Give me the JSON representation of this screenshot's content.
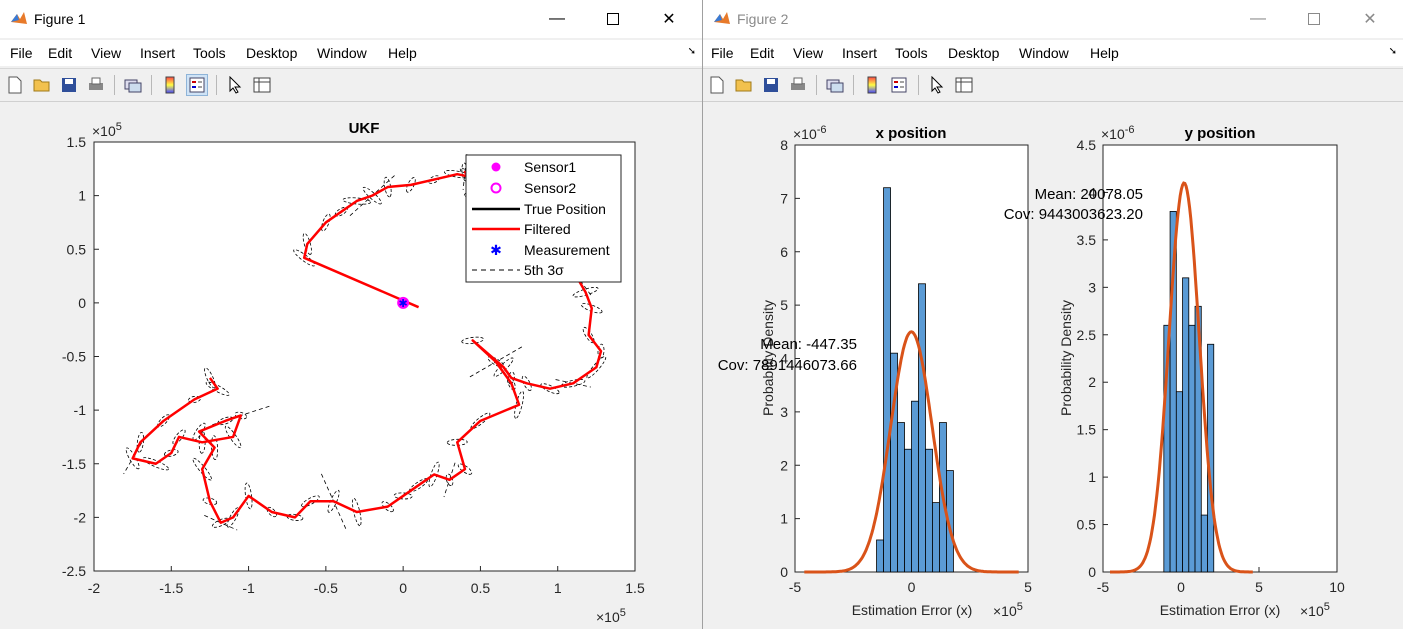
{
  "figure1": {
    "title": "Figure 1",
    "menu": [
      "File",
      "Edit",
      "View",
      "Insert",
      "Tools",
      "Desktop",
      "Window",
      "Help"
    ],
    "toolbar_icons": [
      "new-figure-icon",
      "open-file-icon",
      "save-icon",
      "print-icon",
      "link-plot-icon",
      "colorbar-icon",
      "legend-icon",
      "pointer-icon",
      "property-inspector-icon"
    ],
    "plot": {
      "title": "UKF",
      "x_exponent": "×10",
      "x_exponent_power": "5",
      "y_exponent": "×10",
      "y_exponent_power": "5",
      "legend": [
        {
          "label": "Sensor1",
          "marker": "filled-circle",
          "color": "#ff00ff"
        },
        {
          "label": "Sensor2",
          "marker": "open-circle",
          "color": "#ff00ff"
        },
        {
          "label": "True Position",
          "marker": "line",
          "color": "#000000"
        },
        {
          "label": "Filtered",
          "marker": "line",
          "color": "#ff0000"
        },
        {
          "label": "Measurement",
          "marker": "asterisk",
          "color": "#0000ff"
        },
        {
          "label": "5th 3σ",
          "marker": "dashed-line",
          "color": "#000000"
        }
      ]
    }
  },
  "figure2": {
    "title": "Figure 2",
    "menu": [
      "File",
      "Edit",
      "View",
      "Insert",
      "Tools",
      "Desktop",
      "Window",
      "Help"
    ],
    "toolbar_icons": [
      "new-figure-icon",
      "open-file-icon",
      "save-icon",
      "print-icon",
      "link-plot-icon",
      "colorbar-icon",
      "legend-icon",
      "pointer-icon",
      "property-inspector-icon"
    ],
    "x_panel": {
      "title": "x position",
      "xlabel": "Estimation Error (x)",
      "ylabel": "Probability Density",
      "y_exponent": "×10",
      "y_exponent_power": "-6",
      "x_exponent": "×10",
      "x_exponent_power": "5",
      "mean_text": "Mean: -447.35",
      "cov_text": "Cov: 7891446073.66"
    },
    "y_panel": {
      "title": "y position",
      "xlabel": "Estimation Error (x)",
      "ylabel": "Probability Density",
      "y_exponent": "×10",
      "y_exponent_power": "-6",
      "x_exponent": "×10",
      "x_exponent_power": "5",
      "mean_text": "Mean: 20078.05",
      "cov_text": "Cov: 9443003623.20"
    }
  },
  "colors": {
    "hist_fill": "#5b9bd5",
    "fit_line": "#d95319",
    "filtered": "#ff0000",
    "sensor": "#ff00ff",
    "measurement": "#0000ff"
  },
  "chart_data": [
    {
      "type": "line",
      "title": "UKF",
      "xlim": [
        -2.0,
        1.5
      ],
      "ylim": [
        -2.5,
        1.5
      ],
      "x_ticks": [
        "-2",
        "-1.5",
        "-1",
        "-0.5",
        "0",
        "0.5",
        "1",
        "1.5"
      ],
      "y_ticks": [
        "-2.5",
        "-2",
        "-1.5",
        "-1",
        "-0.5",
        "0",
        "0.5",
        "1",
        "1.5"
      ],
      "scale_note": "×10^5 on both axes",
      "series": [
        {
          "name": "Sensor1",
          "x": [
            0.0
          ],
          "y": [
            0.0
          ]
        },
        {
          "name": "Sensor2",
          "x": [
            0.0
          ],
          "y": [
            0.0
          ]
        },
        {
          "name": "Filtered",
          "x": [
            0.1,
            -0.64,
            -0.62,
            -0.5,
            -0.4,
            -0.3,
            -0.2,
            -0.1,
            0.05,
            0.2,
            0.35,
            0.42,
            0.4,
            0.5,
            0.48,
            0.6,
            0.8,
            0.95,
            1.1,
            1.18,
            1.22,
            1.2,
            1.28,
            1.25,
            1.1,
            0.95,
            0.8,
            0.7,
            0.65,
            0.45,
            0.6,
            0.7,
            0.75,
            0.5,
            0.35,
            0.4,
            0.3,
            0.2,
            0.1,
            0.0,
            -0.1,
            -0.3,
            -0.45,
            -0.6,
            -0.7,
            -0.85,
            -1.0,
            -1.1,
            -1.18,
            -1.25,
            -1.3,
            -1.22,
            -1.32,
            -1.15,
            -1.05,
            -1.1,
            -1.3,
            -1.45,
            -1.5,
            -1.6,
            -1.75,
            -1.7,
            -1.55,
            -1.35,
            -1.2,
            -1.25
          ],
          "y": [
            -0.04,
            0.42,
            0.55,
            0.75,
            0.85,
            0.95,
            1.0,
            1.08,
            1.1,
            1.15,
            1.2,
            1.18,
            1.22,
            1.15,
            1.05,
            0.95,
            0.7,
            0.55,
            0.3,
            0.1,
            -0.05,
            -0.3,
            -0.45,
            -0.6,
            -0.75,
            -0.8,
            -0.75,
            -0.7,
            -0.6,
            -0.35,
            -0.55,
            -0.75,
            -0.95,
            -1.1,
            -1.3,
            -1.55,
            -1.65,
            -1.6,
            -1.7,
            -1.8,
            -1.9,
            -1.95,
            -1.85,
            -1.85,
            -2.0,
            -1.95,
            -1.8,
            -2.0,
            -2.05,
            -1.85,
            -1.55,
            -1.35,
            -1.2,
            -1.1,
            -1.05,
            -1.25,
            -1.3,
            -1.25,
            -1.4,
            -1.5,
            -1.45,
            -1.3,
            -1.1,
            -0.9,
            -0.8,
            -0.7
          ]
        }
      ]
    },
    {
      "type": "bar",
      "title": "x position",
      "xlabel": "Estimation Error (x)",
      "ylabel": "Probability Density",
      "xlim": [
        -5,
        5
      ],
      "ylim": [
        0,
        8
      ],
      "x_ticks": [
        "-5",
        "0",
        "5"
      ],
      "y_ticks": [
        "0",
        "1",
        "2",
        "3",
        "4",
        "5",
        "6",
        "7",
        "8"
      ],
      "scale_note": "x ×10^5, y ×10^-6",
      "bin_left": [
        -1.5,
        -1.2,
        -0.9,
        -0.6,
        -0.3,
        0.0,
        0.3,
        0.6,
        0.9,
        1.2,
        1.5
      ],
      "values": [
        0.6,
        7.2,
        4.1,
        2.8,
        2.3,
        3.2,
        5.4,
        2.3,
        1.3,
        2.8,
        1.9
      ],
      "fit_mean": -0.00447,
      "fit_peak": 4.5,
      "mean_text": "Mean: -447.35",
      "cov_text": "Cov: 7891446073.66"
    },
    {
      "type": "bar",
      "title": "y position",
      "xlabel": "Estimation Error (x)",
      "ylabel": "Probability Density",
      "xlim": [
        -5,
        10
      ],
      "ylim": [
        0,
        4.5
      ],
      "x_ticks": [
        "-5",
        "0",
        "5",
        "10"
      ],
      "y_ticks": [
        "0",
        "0.5",
        "1",
        "1.5",
        "2",
        "2.5",
        "3",
        "3.5",
        "4",
        "4.5"
      ],
      "scale_note": "x ×10^5, y ×10^-6",
      "bin_left": [
        -1.1,
        -0.7,
        -0.3,
        0.1,
        0.5,
        0.9,
        1.3,
        1.7
      ],
      "values": [
        2.6,
        3.8,
        1.9,
        3.1,
        2.6,
        2.8,
        0.6,
        2.4
      ],
      "fit_mean": 0.2,
      "fit_peak": 4.1,
      "mean_text": "Mean: 20078.05",
      "cov_text": "Cov: 9443003623.20"
    }
  ]
}
